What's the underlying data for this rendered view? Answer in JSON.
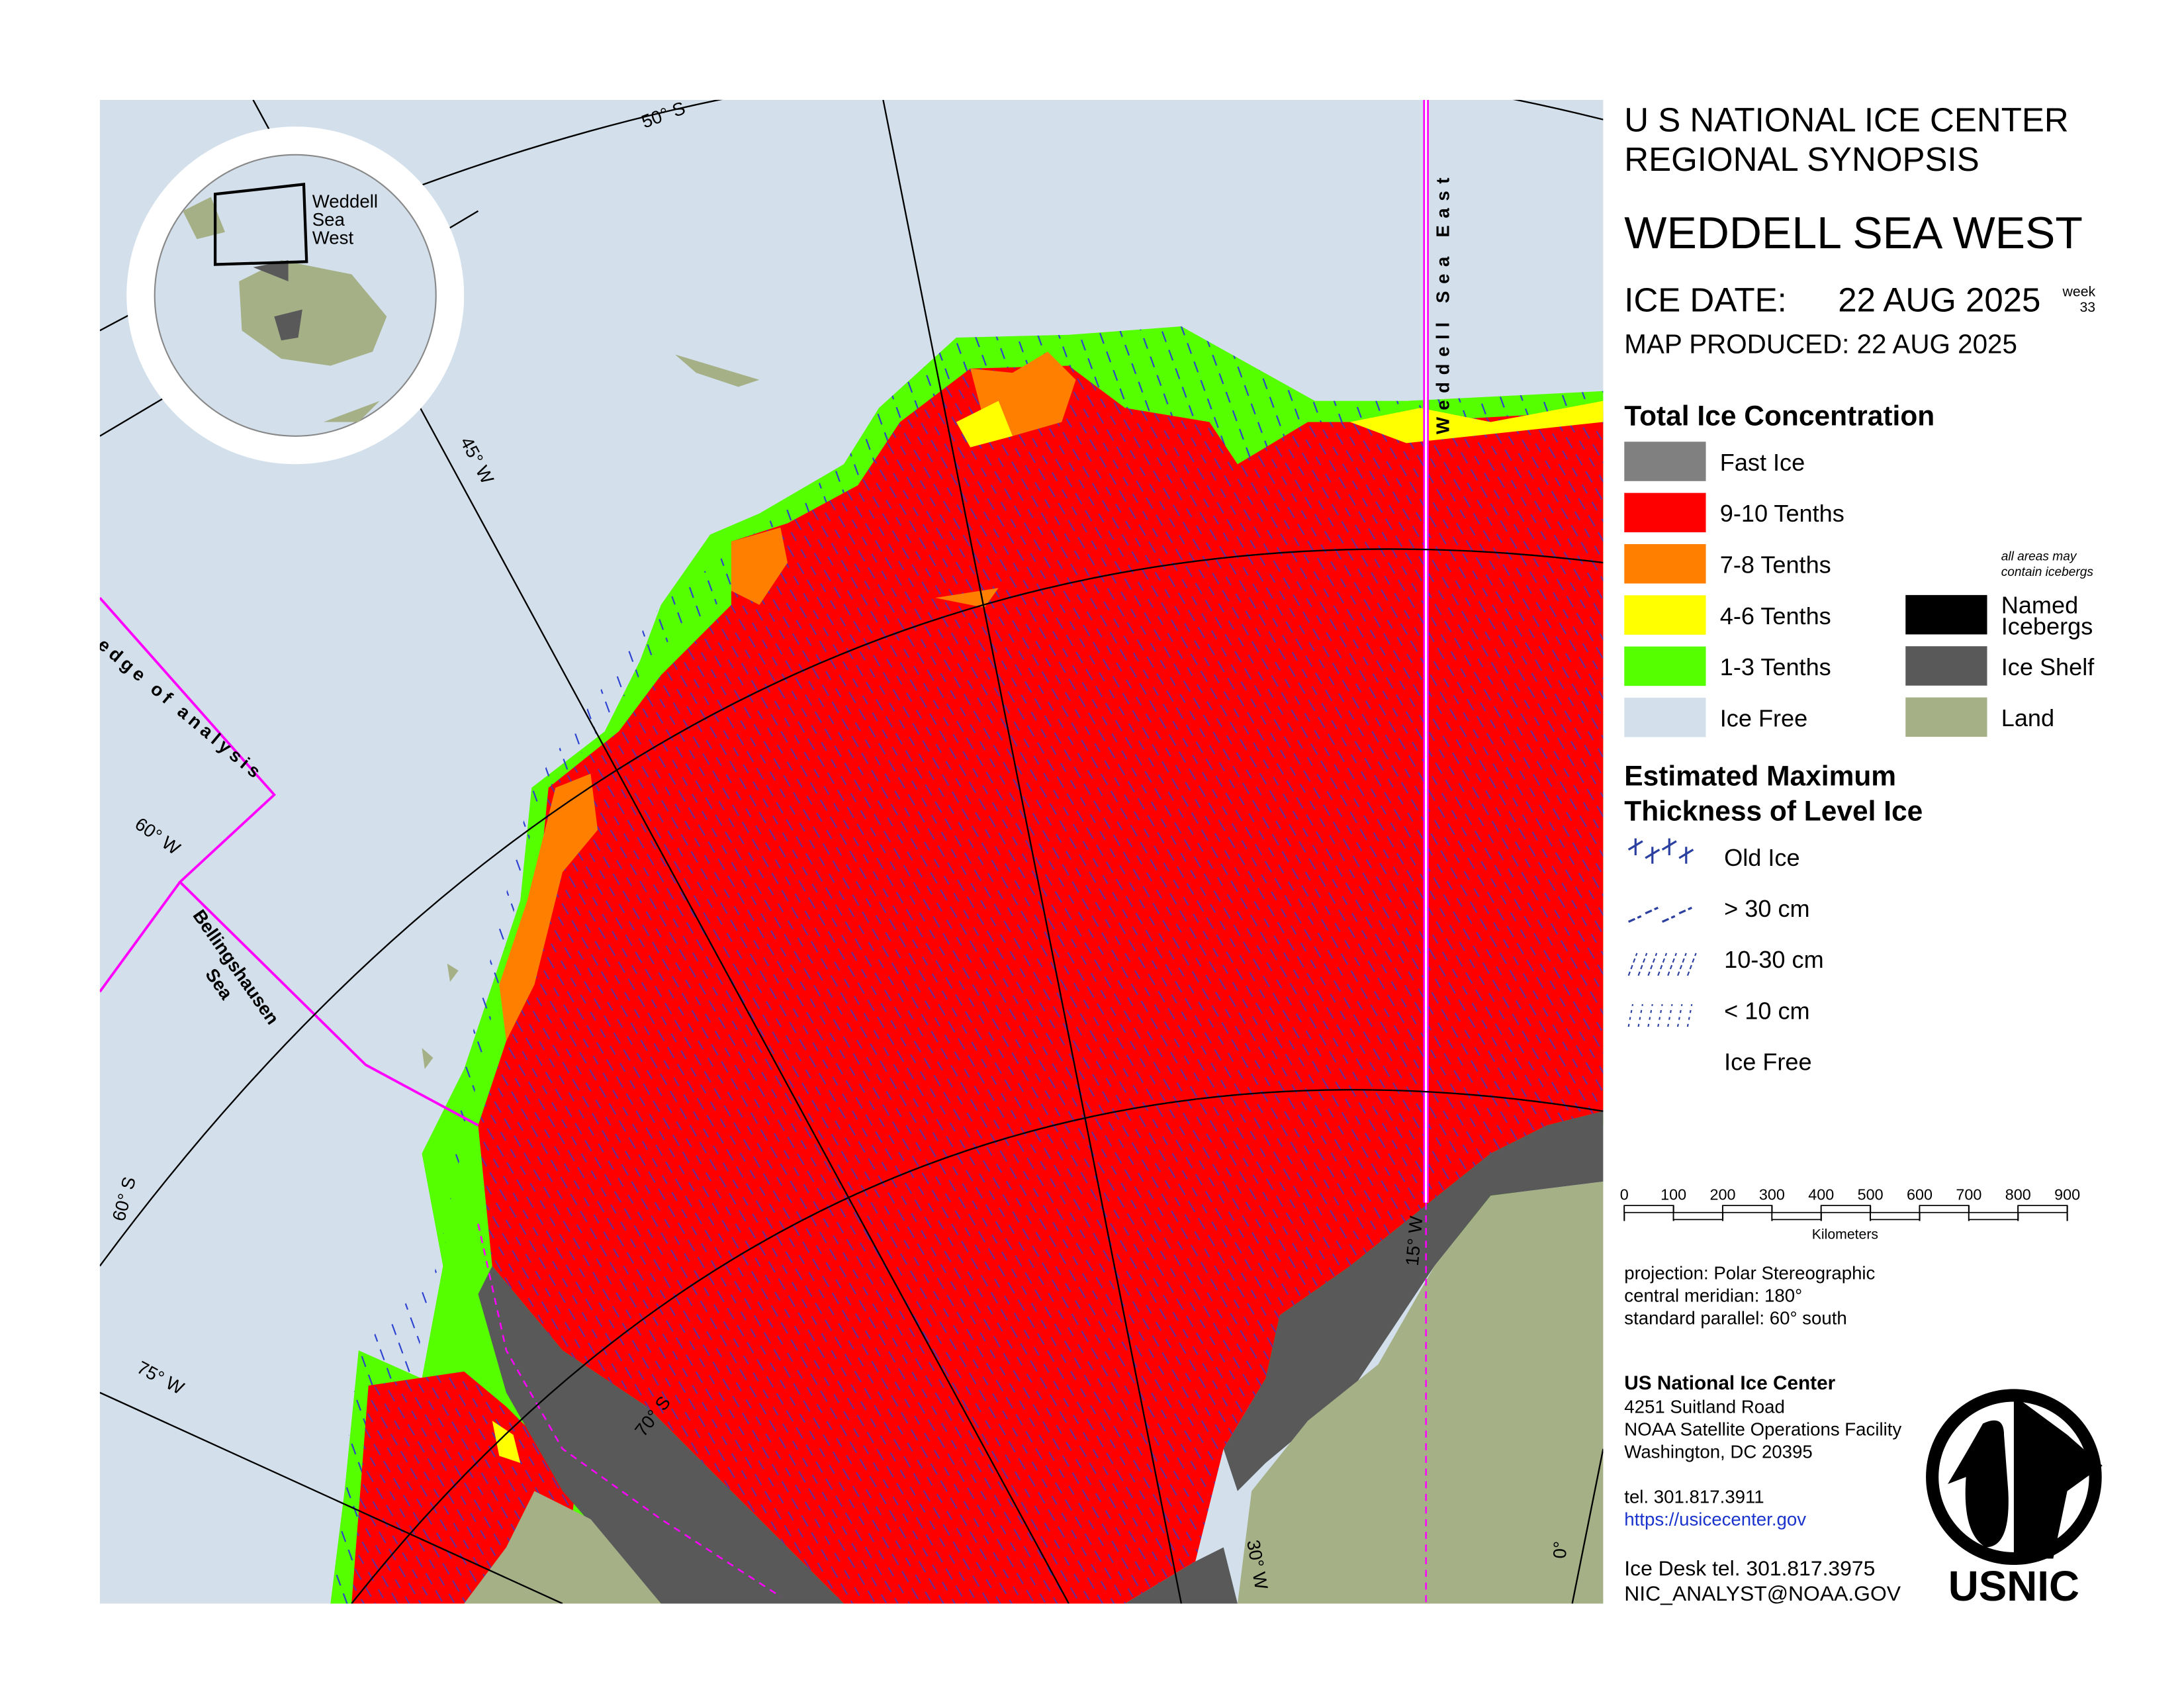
{
  "header": {
    "line1": "U S NATIONAL ICE CENTER",
    "line2": "REGIONAL SYNOPSIS",
    "region": "WEDDELL SEA WEST",
    "ice_date_label": "ICE DATE:",
    "ice_date": "22 AUG 2025",
    "week_label": "week",
    "week": "33",
    "map_produced": "MAP PRODUCED:  22 AUG 2025"
  },
  "concentration_legend": {
    "title": "Total Ice Concentration",
    "items": [
      {
        "label": "Fast Ice",
        "color": "#808080"
      },
      {
        "label": "9-10 Tenths",
        "color": "#ff0000"
      },
      {
        "label": "7-8 Tenths",
        "color": "#ff7f00"
      },
      {
        "label": "4-6 Tenths",
        "color": "#ffff00"
      },
      {
        "label": "1-3 Tenths",
        "color": "#55ff00"
      },
      {
        "label": "Ice Free",
        "color": "#d3e0ec"
      }
    ],
    "note": [
      "all areas may",
      "contain icebergs"
    ],
    "extra_items": [
      {
        "label": [
          "Named",
          "Icebergs"
        ],
        "color": "#000000"
      },
      {
        "label": [
          "Ice Shelf"
        ],
        "color": "#595959"
      },
      {
        "label": [
          "Land"
        ],
        "color": "#a5b086"
      }
    ]
  },
  "thickness_legend": {
    "title": [
      "Estimated Maximum",
      "Thickness of Level Ice"
    ],
    "items": [
      "Old Ice",
      "> 30 cm",
      "10-30 cm",
      "< 10 cm",
      "Ice Free"
    ]
  },
  "scale_bar": {
    "ticks": [
      0,
      100,
      200,
      300,
      400,
      500,
      600,
      700,
      800,
      900
    ],
    "unit": "Kilometers"
  },
  "projection": [
    "projection: Polar Stereographic",
    "central meridian: 180°",
    "standard parallel:  60° south"
  ],
  "contact": {
    "name": "US National Ice Center",
    "address": [
      "4251 Suitland Road",
      "NOAA Satellite Operations Facility",
      "Washington, DC  20395"
    ],
    "tel": "tel. 301.817.3911",
    "url": "https://usicecenter.gov",
    "desk": "Ice Desk tel. 301.817.3975",
    "email": "NIC_ANALYST@NOAA.GOV"
  },
  "logo": "USNIC",
  "map_labels": {
    "lat_50s": "50° S",
    "lon_45w": "45° W",
    "lon_60w": "60° W",
    "lat_60s": "60° S",
    "lon_75w": "75° W",
    "lat_70s": "70° S",
    "lon_30w": "30° W",
    "lon_15w": "15° W",
    "lon_0": "0°",
    "edge": "edge of analysis",
    "bellingshausen": [
      "Bellingshausen",
      "Sea"
    ],
    "weddell_east": "Weddell Sea East",
    "inset": [
      "Weddell",
      "Sea",
      "West"
    ]
  }
}
